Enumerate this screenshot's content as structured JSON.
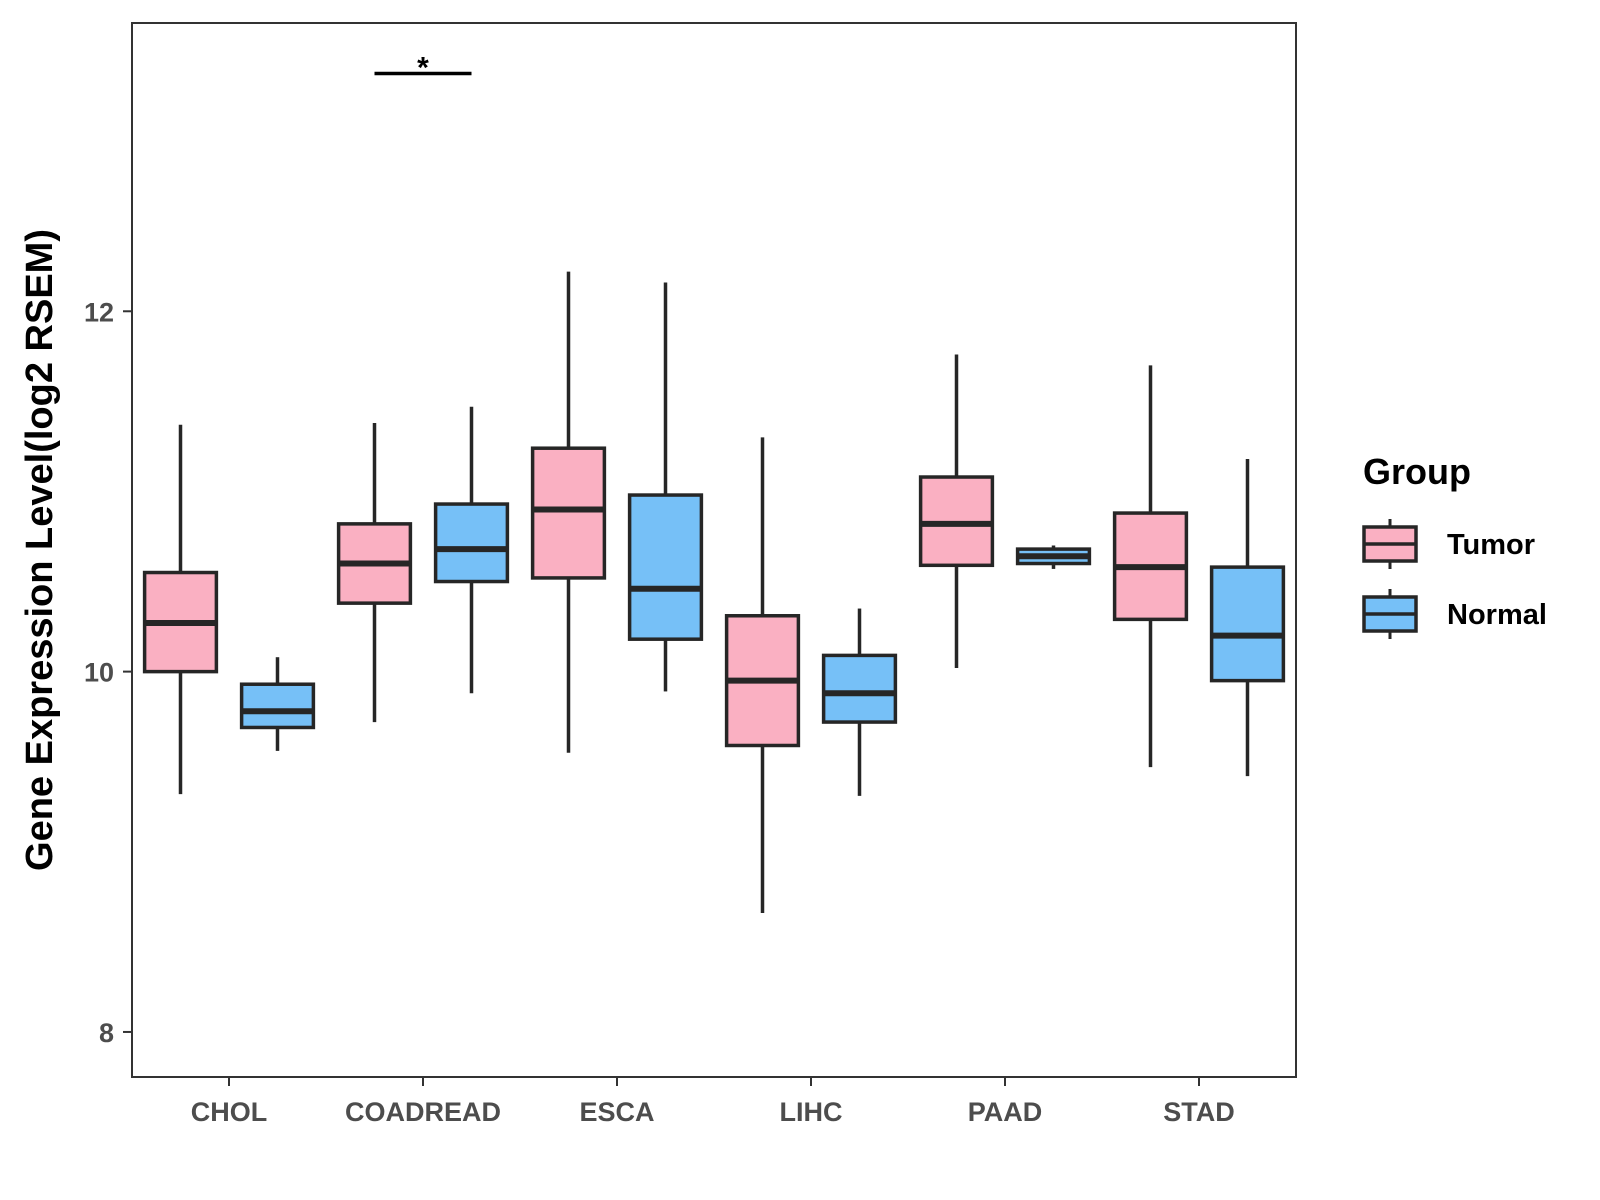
{
  "chart_data": {
    "type": "boxplot",
    "ylabel": "Gene Expression Level(log2 RSEM)",
    "xlabel": "",
    "ylim": [
      7.75,
      13.6
    ],
    "yticks": [
      8,
      10,
      12
    ],
    "ytick_labels": [
      "8",
      "10",
      "12"
    ],
    "categories": [
      "CHOL",
      "COADREAD",
      "ESCA",
      "LIHC",
      "PAAD",
      "STAD"
    ],
    "legend": {
      "title": "Group",
      "position": "right",
      "entries": [
        {
          "name": "Tumor",
          "color": "#FAB0C2"
        },
        {
          "name": "Normal",
          "color": "#76C0F7"
        }
      ]
    },
    "series": [
      {
        "name": "Tumor",
        "color": "#FAB0C2",
        "boxes": [
          {
            "min": 9.32,
            "q1": 10.0,
            "median": 10.27,
            "q3": 10.55,
            "max": 11.37
          },
          {
            "min": 9.72,
            "q1": 10.38,
            "median": 10.6,
            "q3": 10.82,
            "max": 11.38
          },
          {
            "min": 9.55,
            "q1": 10.52,
            "median": 10.9,
            "q3": 11.24,
            "max": 12.22
          },
          {
            "min": 8.66,
            "q1": 9.59,
            "median": 9.95,
            "q3": 10.31,
            "max": 11.3
          },
          {
            "min": 10.02,
            "q1": 10.59,
            "median": 10.82,
            "q3": 11.08,
            "max": 11.76
          },
          {
            "min": 9.47,
            "q1": 10.29,
            "median": 10.58,
            "q3": 10.88,
            "max": 11.7
          }
        ]
      },
      {
        "name": "Normal",
        "color": "#76C0F7",
        "boxes": [
          {
            "min": 9.56,
            "q1": 9.69,
            "median": 9.78,
            "q3": 9.93,
            "max": 10.08
          },
          {
            "min": 9.88,
            "q1": 10.5,
            "median": 10.68,
            "q3": 10.93,
            "max": 11.47
          },
          {
            "min": 9.89,
            "q1": 10.18,
            "median": 10.46,
            "q3": 10.98,
            "max": 12.16
          },
          {
            "min": 9.31,
            "q1": 9.72,
            "median": 9.88,
            "q3": 10.09,
            "max": 10.35
          },
          {
            "min": 10.57,
            "q1": 10.6,
            "median": 10.64,
            "q3": 10.68,
            "max": 10.7
          },
          {
            "min": 9.42,
            "q1": 9.95,
            "median": 10.2,
            "q3": 10.58,
            "max": 11.18
          }
        ]
      }
    ],
    "annotations": [
      {
        "type": "significance",
        "category": "COADREAD",
        "label": "*",
        "y": 13.32
      }
    ]
  }
}
